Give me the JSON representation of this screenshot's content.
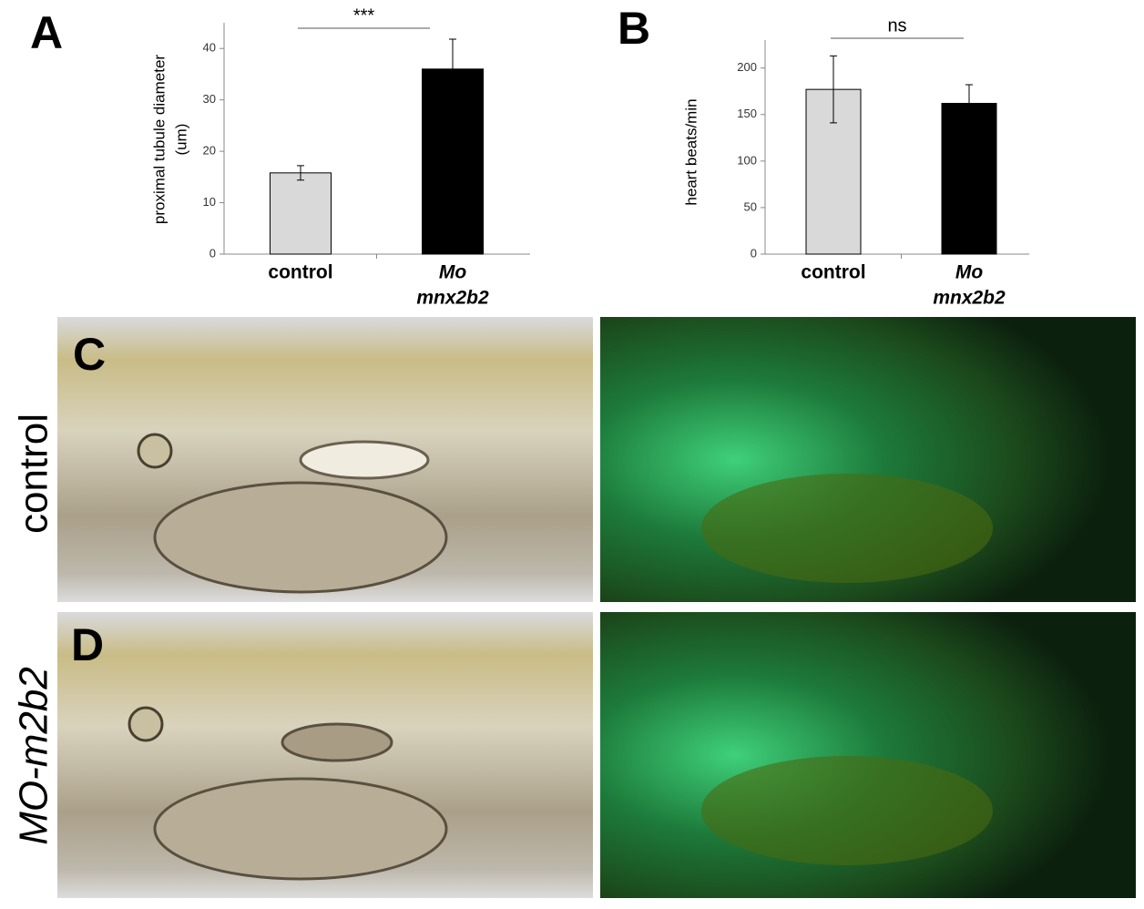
{
  "panels": {
    "a": "A",
    "b": "B",
    "c": "C",
    "d": "D"
  },
  "row_labels": {
    "top": "control",
    "bottom": "MO-m2b2"
  },
  "chart_data": [
    {
      "type": "bar",
      "ylabel": [
        "proximal tubule diameter",
        "(um)"
      ],
      "categories": [
        [
          "control"
        ],
        [
          "Mo",
          "mnx2b2"
        ]
      ],
      "values": [
        15.8,
        36
      ],
      "errors": [
        1.4,
        5.8
      ],
      "colors": [
        "#d9d9d9",
        "#000000"
      ],
      "ylim": [
        0,
        45
      ],
      "yticks": [
        0,
        10,
        20,
        30,
        40
      ],
      "significance": "***"
    },
    {
      "type": "bar",
      "ylabel": [
        "heart beats/min"
      ],
      "categories": [
        [
          "control"
        ],
        [
          "Mo",
          "mnx2b2"
        ]
      ],
      "values": [
        177,
        162
      ],
      "errors": [
        36,
        20
      ],
      "colors": [
        "#d9d9d9",
        "#000000"
      ],
      "ylim": [
        0,
        230
      ],
      "yticks": [
        0,
        50,
        100,
        150,
        200
      ],
      "significance": "ns"
    }
  ]
}
